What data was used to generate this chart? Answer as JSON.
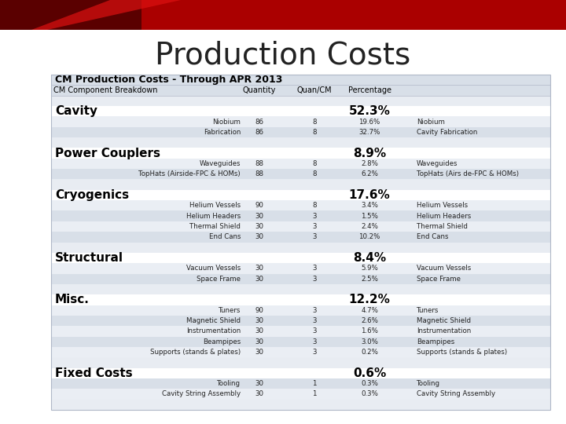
{
  "title": "Production Costs",
  "subtitle": "CM Production Costs - Through APR 2013",
  "header_cols": [
    "CM Component Breakdown",
    "Quantity",
    "Quan/CM",
    "Percentage",
    ""
  ],
  "sections": [
    {
      "name": "Cavity",
      "percentage": "52.3%",
      "items": [
        {
          "name": "Niobium",
          "qty": "86",
          "quan_cm": "8",
          "pct": "19.6%",
          "note": "Niobium"
        },
        {
          "name": "Fabrication",
          "qty": "86",
          "quan_cm": "8",
          "pct": "32.7%",
          "note": "Cavity Fabrication"
        }
      ]
    },
    {
      "name": "Power Couplers",
      "percentage": "8.9%",
      "items": [
        {
          "name": "Waveguides",
          "qty": "88",
          "quan_cm": "8",
          "pct": "2.8%",
          "note": "Waveguides"
        },
        {
          "name": "TopHats (Airside-FPC & HOMs)",
          "qty": "88",
          "quan_cm": "8",
          "pct": "6.2%",
          "note": "TopHats (Airs de-FPC & HOMs)"
        }
      ]
    },
    {
      "name": "Cryogenics",
      "percentage": "17.6%",
      "items": [
        {
          "name": "Helium Vessels",
          "qty": "90",
          "quan_cm": "8",
          "pct": "3.4%",
          "note": "Helium Vessels"
        },
        {
          "name": "Helium Headers",
          "qty": "30",
          "quan_cm": "3",
          "pct": "1.5%",
          "note": "Helium Headers"
        },
        {
          "name": "Thermal Shield",
          "qty": "30",
          "quan_cm": "3",
          "pct": "2.4%",
          "note": "Thermal Shield"
        },
        {
          "name": "End Cans",
          "qty": "30",
          "quan_cm": "3",
          "pct": "10.2%",
          "note": "End Cans"
        }
      ]
    },
    {
      "name": "Structural",
      "percentage": "8.4%",
      "items": [
        {
          "name": "Vacuum Vessels",
          "qty": "30",
          "quan_cm": "3",
          "pct": "5.9%",
          "note": "Vacuum Vessels"
        },
        {
          "name": "Space Frame",
          "qty": "30",
          "quan_cm": "3",
          "pct": "2.5%",
          "note": "Space Frame"
        }
      ]
    },
    {
      "name": "Misc.",
      "percentage": "12.2%",
      "items": [
        {
          "name": "Tuners",
          "qty": "90",
          "quan_cm": "3",
          "pct": "4.7%",
          "note": "Tuners"
        },
        {
          "name": "Magnetic Shield",
          "qty": "30",
          "quan_cm": "3",
          "pct": "2.6%",
          "note": "Magnetic Shield"
        },
        {
          "name": "Instrumentation",
          "qty": "30",
          "quan_cm": "3",
          "pct": "1.6%",
          "note": "Instrumentation"
        },
        {
          "name": "Beampipes",
          "qty": "30",
          "quan_cm": "3",
          "pct": "3.0%",
          "note": "Beampipes"
        },
        {
          "name": "Supports (stands & plates)",
          "qty": "30",
          "quan_cm": "3",
          "pct": "0.2%",
          "note": "Supports (stands & plates)"
        }
      ]
    },
    {
      "name": "Fixed Costs",
      "percentage": "0.6%",
      "items": [
        {
          "name": "Tooling",
          "qty": "30",
          "quan_cm": "1",
          "pct": "0.3%",
          "note": "Tooling"
        },
        {
          "name": "Cavity String Assembly",
          "qty": "30",
          "quan_cm": "1",
          "pct": "0.3%",
          "note": "Cavity String Assembly"
        }
      ]
    }
  ],
  "bg_subtitle": "#d8dfe8",
  "bg_header": "#d8dfe8",
  "bg_blank": "#e8ecf2",
  "bg_section": "#ffffff",
  "bg_item_a": "#eaeef4",
  "bg_item_b": "#d8dfe8",
  "title_color": "#222222",
  "border_color": "#b0b8c8",
  "top_bar_dark": "#5a0000",
  "top_bar_mid": "#aa0000",
  "top_bar_bright": "#dd1111"
}
